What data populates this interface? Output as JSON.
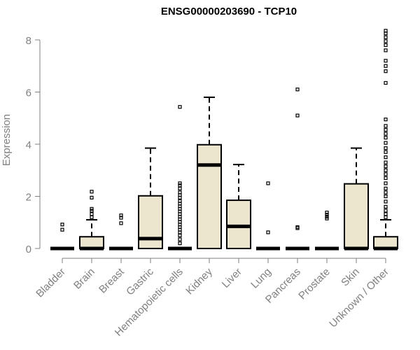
{
  "chart_data": {
    "type": "box",
    "title": "ENSG00000203690 - TCP10",
    "xlabel": "",
    "ylabel": "Expression",
    "ylim": [
      0,
      8.3
    ],
    "yticks": [
      0,
      2,
      4,
      6,
      8
    ],
    "box_fill": "#ede6cf",
    "box_stroke": "#000000",
    "axis_color": "#808080",
    "categories": [
      "Bladder",
      "Brain",
      "Breast",
      "Gastric",
      "Hematopoietic cells",
      "Kidney",
      "Liver",
      "Lung",
      "Pancreas",
      "Prostate",
      "Skin",
      "Unknown / Other"
    ],
    "boxes": [
      {
        "name": "Bladder",
        "q1": 0,
        "median": 0,
        "q3": 0,
        "whisker_low": 0,
        "whisker_high": 0,
        "outliers": [
          0.72,
          0.92
        ]
      },
      {
        "name": "Brain",
        "q1": 0,
        "median": 0,
        "q3": 0.45,
        "whisker_low": 0,
        "whisker_high": 1.1,
        "outliers": [
          1.2,
          1.32,
          1.45,
          1.52,
          1.95,
          2.18
        ]
      },
      {
        "name": "Breast",
        "q1": 0,
        "median": 0,
        "q3": 0,
        "whisker_low": 0,
        "whisker_high": 0,
        "outliers": [
          0.97,
          1.18,
          1.27
        ]
      },
      {
        "name": "Gastric",
        "q1": 0,
        "median": 0.38,
        "q3": 2.02,
        "whisker_low": 0,
        "whisker_high": 3.85,
        "outliers": []
      },
      {
        "name": "Hematopoietic cells",
        "q1": 0,
        "median": 0,
        "q3": 0,
        "whisker_low": 0,
        "whisker_high": 0,
        "outliers": [
          0.2,
          0.35,
          0.5,
          0.62,
          0.72,
          0.82,
          0.92,
          1.02,
          1.12,
          1.22,
          1.32,
          1.42,
          1.52,
          1.62,
          1.72,
          1.82,
          1.95,
          2.05,
          2.15,
          2.3,
          2.42,
          2.5,
          5.43
        ]
      },
      {
        "name": "Kidney",
        "q1": 0,
        "median": 3.2,
        "q3": 3.98,
        "whisker_low": 0,
        "whisker_high": 5.8,
        "outliers": []
      },
      {
        "name": "Liver",
        "q1": 0,
        "median": 0.85,
        "q3": 1.85,
        "whisker_low": 0,
        "whisker_high": 3.22,
        "outliers": []
      },
      {
        "name": "Lung",
        "q1": 0,
        "median": 0,
        "q3": 0,
        "whisker_low": 0,
        "whisker_high": 0,
        "outliers": [
          0.62,
          2.5
        ]
      },
      {
        "name": "Pancreas",
        "q1": 0,
        "median": 0,
        "q3": 0,
        "whisker_low": 0,
        "whisker_high": 0,
        "outliers": [
          0.78,
          0.82,
          5.1,
          6.1
        ]
      },
      {
        "name": "Prostate",
        "q1": 0,
        "median": 0,
        "q3": 0,
        "whisker_low": 0,
        "whisker_high": 0,
        "outliers": [
          1.15,
          1.22,
          1.3,
          1.38
        ]
      },
      {
        "name": "Skin",
        "q1": 0,
        "median": 0,
        "q3": 2.48,
        "whisker_low": 0,
        "whisker_high": 3.85,
        "outliers": []
      },
      {
        "name": "Unknown / Other",
        "q1": 0,
        "median": 0,
        "q3": 0.45,
        "whisker_low": 0,
        "whisker_high": 1.1,
        "outliers": [
          1.2,
          1.32,
          1.45,
          1.6,
          1.8,
          2.0,
          2.15,
          2.3,
          2.5,
          2.7,
          2.85,
          3.0,
          3.15,
          3.3,
          3.5,
          3.7,
          3.85,
          4.05,
          4.25,
          4.4,
          4.55,
          4.7,
          4.95,
          6.35,
          6.8,
          7.0,
          7.2,
          7.6,
          7.8,
          7.95,
          8.1,
          8.25,
          8.35
        ]
      }
    ]
  }
}
